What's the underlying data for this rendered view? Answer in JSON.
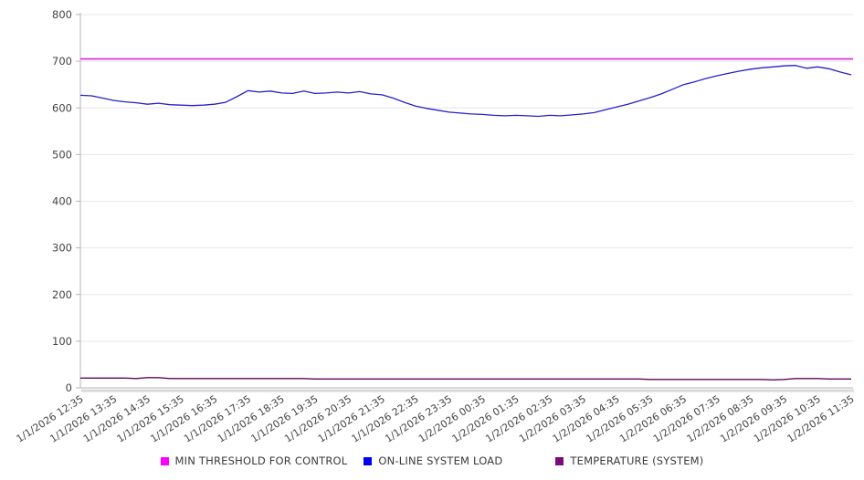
{
  "chart_data": {
    "type": "line",
    "title": "",
    "xlabel": "",
    "ylabel": "",
    "ylim": [
      0,
      800
    ],
    "y_ticks": [
      0,
      100,
      200,
      300,
      400,
      500,
      600,
      700,
      800
    ],
    "grid": "horizontal",
    "legend_position": "bottom",
    "x_tick_labels": [
      "1/1/2026 12:35",
      "1/1/2026 13:35",
      "1/1/2026 14:35",
      "1/1/2026 15:35",
      "1/1/2026 16:35",
      "1/1/2026 17:35",
      "1/1/2026 18:35",
      "1/1/2026 19:35",
      "1/1/2026 20:35",
      "1/1/2026 21:35",
      "1/1/2026 22:35",
      "1/1/2026 23:35",
      "1/2/2026 00:35",
      "1/2/2026 01:35",
      "1/2/2026 02:35",
      "1/2/2026 03:35",
      "1/2/2026 04:35",
      "1/2/2026 05:35",
      "1/2/2026 06:35",
      "1/2/2026 07:35",
      "1/2/2026 08:35",
      "1/2/2026 09:35",
      "1/2/2026 10:35",
      "1/2/2026 11:35"
    ],
    "x_minutes_per_point": 20,
    "series": [
      {
        "name": "MIN THRESHOLD FOR CONTROL",
        "line_color": "#DD22DD",
        "swatch_color": "#FF00FF",
        "constant": 705
      },
      {
        "name": "ON-LINE SYSTEM LOAD",
        "line_color": "#2222C8",
        "swatch_color": "#0000F0",
        "values": [
          627,
          626,
          621,
          616,
          613,
          611,
          608,
          610,
          607,
          606,
          605,
          606,
          608,
          612,
          624,
          637,
          634,
          636,
          632,
          631,
          636,
          631,
          632,
          634,
          632,
          635,
          630,
          628,
          621,
          612,
          604,
          599,
          595,
          591,
          589,
          587,
          586,
          584,
          583,
          584,
          583,
          582,
          584,
          583,
          585,
          587,
          590,
          596,
          602,
          608,
          615,
          622,
          630,
          640,
          650,
          656,
          663,
          669,
          674,
          679,
          683,
          686,
          688,
          690,
          691,
          685,
          688,
          684,
          677,
          671
        ]
      },
      {
        "name": "TEMPERATURE (SYSTEM)",
        "line_color": "#5A075A",
        "swatch_color": "#7B0B7B",
        "values": [
          21,
          21,
          21,
          21,
          21,
          20,
          22,
          22,
          20,
          20,
          20,
          20,
          20,
          20,
          20,
          20,
          20,
          20,
          20,
          20,
          20,
          19,
          19,
          19,
          19,
          19,
          19,
          19,
          19,
          19,
          19,
          19,
          19,
          19,
          19,
          19,
          19,
          19,
          19,
          19,
          19,
          19,
          19,
          19,
          19,
          19,
          19,
          19,
          19,
          19,
          19,
          18,
          18,
          18,
          18,
          18,
          18,
          18,
          18,
          18,
          18,
          18,
          17,
          18,
          20,
          20,
          20,
          19,
          19,
          19
        ]
      }
    ],
    "colors": {
      "axis": "#B5B5B5",
      "gridline": "#E7E7E7",
      "tick_label": "#444444",
      "minor_tick": "#999999"
    }
  }
}
